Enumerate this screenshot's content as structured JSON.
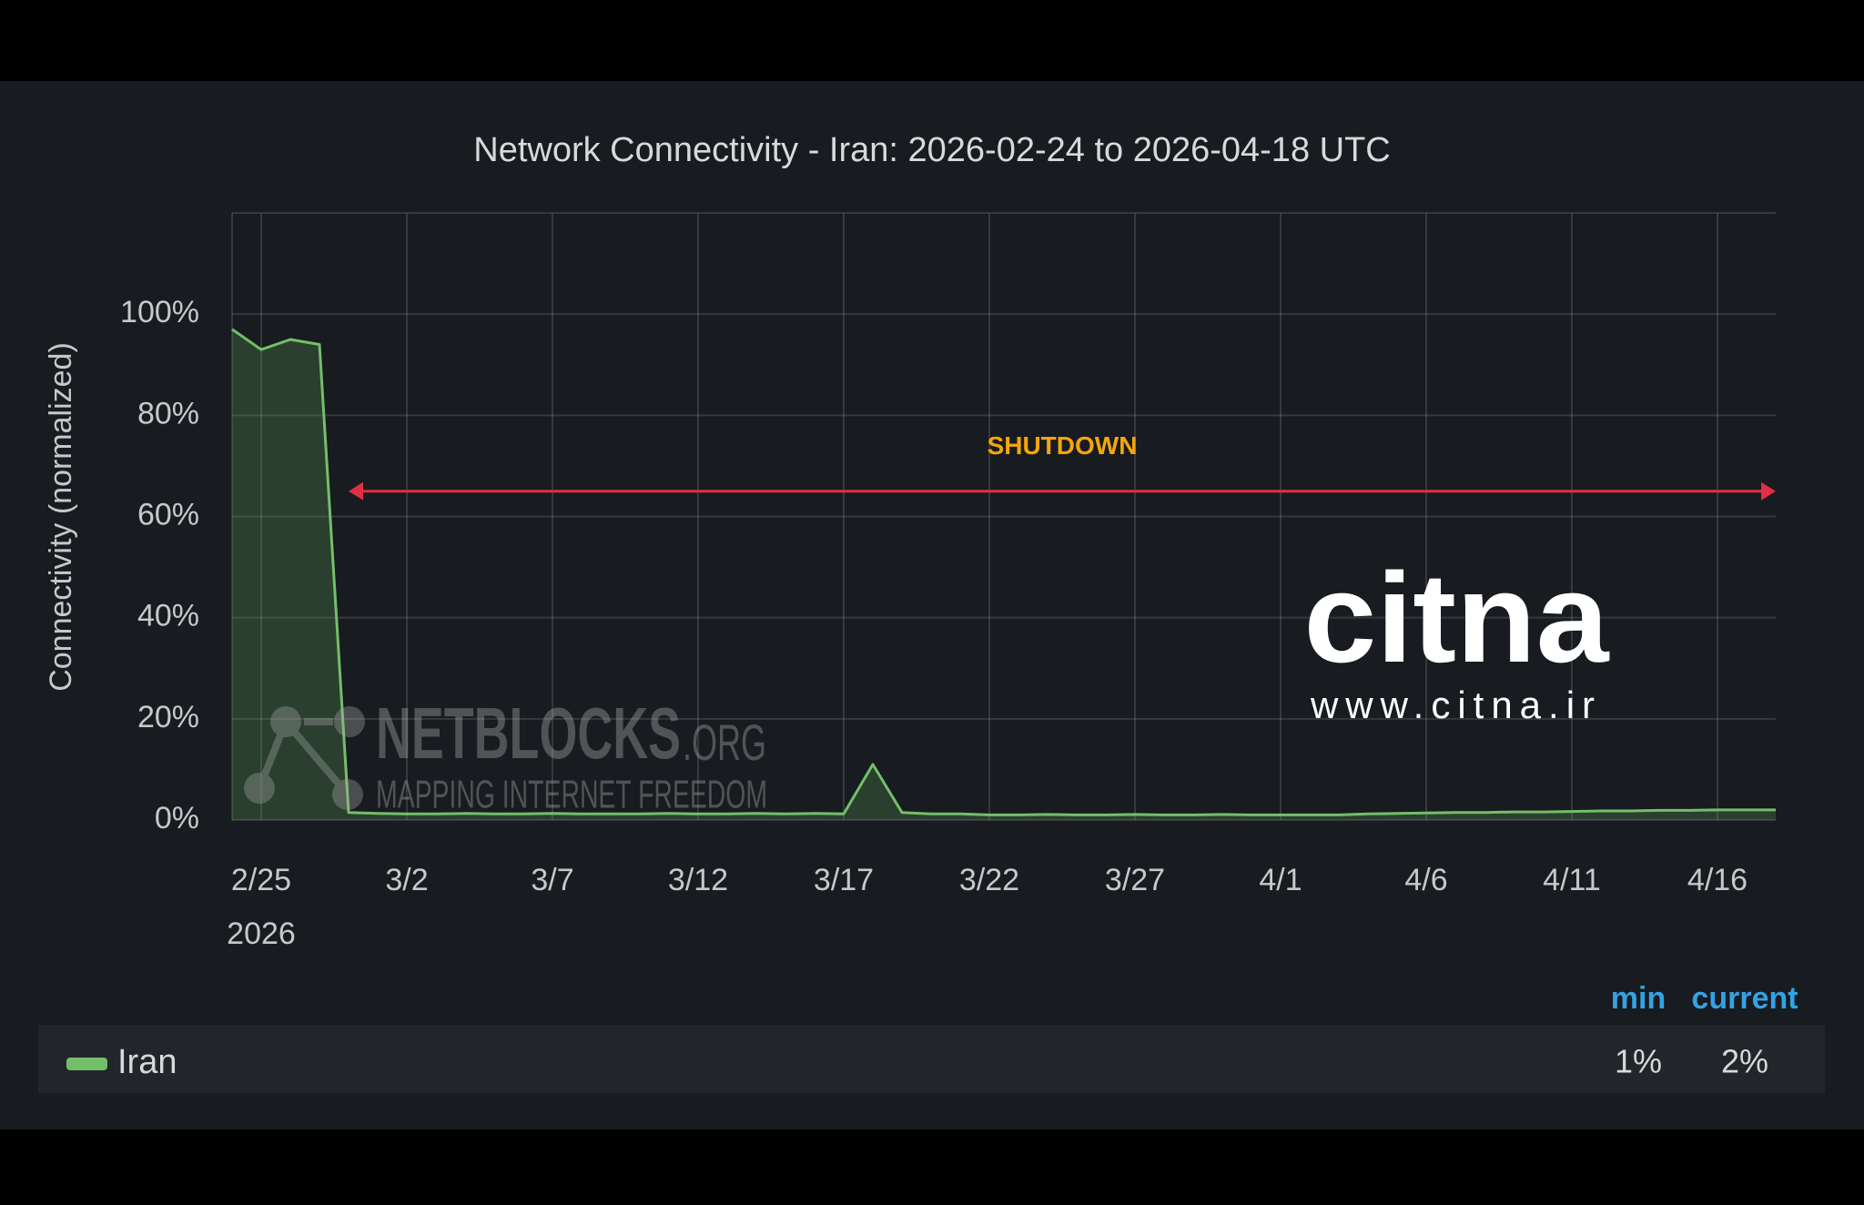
{
  "chart_data": {
    "type": "line",
    "title": "Network Connectivity - Iran: 2026-02-24 to 2026-04-18 UTC",
    "y_label": "Connectivity (normalized)",
    "xlim": [
      "2026-02-24",
      "2026-04-18"
    ],
    "xticks": [
      {
        "value": "2026-02-25",
        "label": "2/25"
      },
      {
        "value": "2026-03-02",
        "label": "3/2"
      },
      {
        "value": "2026-03-07",
        "label": "3/7"
      },
      {
        "value": "2026-03-12",
        "label": "3/12"
      },
      {
        "value": "2026-03-17",
        "label": "3/17"
      },
      {
        "value": "2026-03-22",
        "label": "3/22"
      },
      {
        "value": "2026-03-27",
        "label": "3/27"
      },
      {
        "value": "2026-04-01",
        "label": "4/1"
      },
      {
        "value": "2026-04-06",
        "label": "4/6"
      },
      {
        "value": "2026-04-11",
        "label": "4/11"
      },
      {
        "value": "2026-04-16",
        "label": "4/16"
      }
    ],
    "xtick_year": "2026",
    "ylim": [
      0,
      120
    ],
    "yticks": [
      {
        "value": 0,
        "label": "0%"
      },
      {
        "value": 20,
        "label": "20%"
      },
      {
        "value": 40,
        "label": "40%"
      },
      {
        "value": 60,
        "label": "60%"
      },
      {
        "value": 80,
        "label": "80%"
      },
      {
        "value": 100,
        "label": "100%"
      }
    ],
    "grid": true,
    "x": [
      "2026-02-24",
      "2026-02-25",
      "2026-02-26",
      "2026-02-27",
      "2026-02-28",
      "2026-03-01",
      "2026-03-02",
      "2026-03-03",
      "2026-03-04",
      "2026-03-05",
      "2026-03-06",
      "2026-03-07",
      "2026-03-08",
      "2026-03-09",
      "2026-03-10",
      "2026-03-11",
      "2026-03-12",
      "2026-03-13",
      "2026-03-14",
      "2026-03-15",
      "2026-03-16",
      "2026-03-17",
      "2026-03-18",
      "2026-03-19",
      "2026-03-20",
      "2026-03-21",
      "2026-03-22",
      "2026-03-23",
      "2026-03-24",
      "2026-03-25",
      "2026-03-26",
      "2026-03-27",
      "2026-03-28",
      "2026-03-29",
      "2026-03-30",
      "2026-03-31",
      "2026-04-01",
      "2026-04-02",
      "2026-04-03",
      "2026-04-04",
      "2026-04-05",
      "2026-04-06",
      "2026-04-07",
      "2026-04-08",
      "2026-04-09",
      "2026-04-10",
      "2026-04-11",
      "2026-04-12",
      "2026-04-13",
      "2026-04-14",
      "2026-04-15",
      "2026-04-16",
      "2026-04-17",
      "2026-04-18"
    ],
    "series": [
      {
        "name": "Iran",
        "color": "#73bf69",
        "values": [
          97,
          93,
          95,
          94,
          1.5,
          1.3,
          1.2,
          1.2,
          1.3,
          1.2,
          1.2,
          1.3,
          1.2,
          1.2,
          1.2,
          1.3,
          1.2,
          1.2,
          1.3,
          1.2,
          1.3,
          1.2,
          11,
          1.5,
          1.2,
          1.2,
          1,
          1,
          1.1,
          1,
          1,
          1.1,
          1,
          1,
          1.1,
          1,
          1,
          1,
          1,
          1.2,
          1.3,
          1.4,
          1.5,
          1.5,
          1.6,
          1.6,
          1.7,
          1.8,
          1.8,
          1.9,
          1.9,
          2,
          2,
          2
        ],
        "stats": [
          "1%",
          "2%"
        ]
      }
    ],
    "stat_columns": [
      "min",
      "current"
    ],
    "annotation": {
      "text": "SHUTDOWN",
      "x_start": "2026-02-28",
      "x_end": "2026-04-18",
      "y": 65,
      "color": "#e02f44",
      "text_color": "#f2a60d"
    },
    "watermarks": {
      "netblocks": "NETBLOCKS",
      "netblocks_suffix": ".ORG",
      "netblocks_tagline": "MAPPING INTERNET FREEDOM",
      "citna": "citna",
      "citna_url": "www.citna.ir"
    }
  }
}
